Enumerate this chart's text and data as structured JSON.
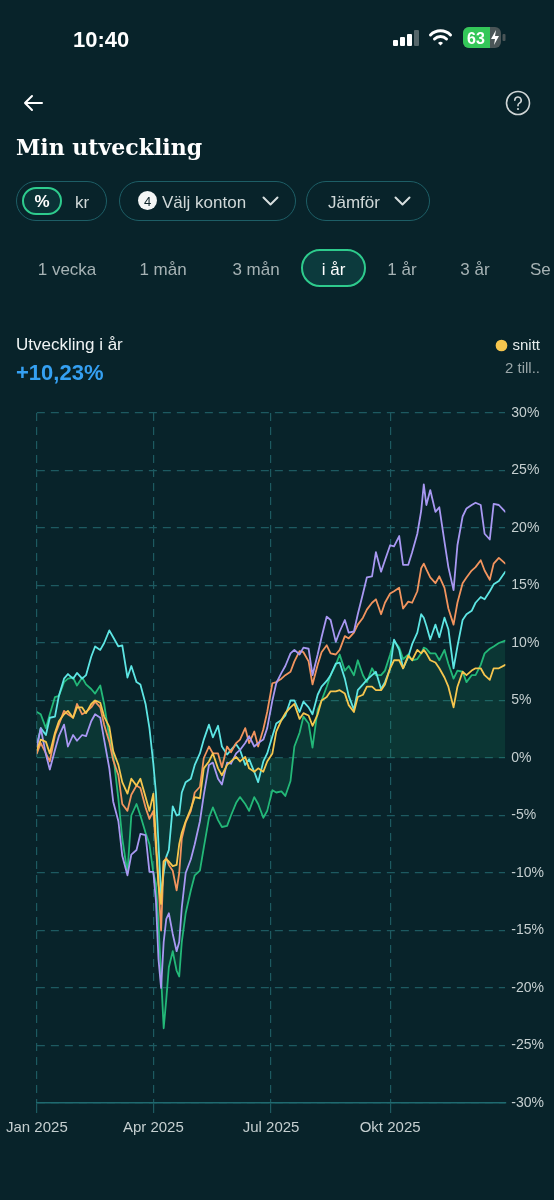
{
  "chart_data": {
    "type": "line",
    "title": "Min utveckling",
    "subtitle": "Utveckling i år",
    "annotations": [
      "10:40",
      "63",
      "%",
      "kr",
      "4",
      "Välj konton",
      "Jämför",
      "1 vecka",
      "1 mån",
      "3 mån",
      "i år",
      "1 år",
      "3 år",
      "Se",
      "+10,23%",
      "2 till.."
    ],
    "x": [
      "2025-01-01",
      "2025-01-04",
      "2025-01-08",
      "2025-01-11",
      "2025-01-15",
      "2025-01-18",
      "2025-01-22",
      "2025-01-25",
      "2025-01-29",
      "2025-02-01",
      "2025-02-05",
      "2025-02-08",
      "2025-02-12",
      "2025-02-15",
      "2025-02-19",
      "2025-02-22",
      "2025-02-26",
      "2025-03-01",
      "2025-03-05",
      "2025-03-08",
      "2025-03-12",
      "2025-03-15",
      "2025-03-19",
      "2025-03-22",
      "2025-03-26",
      "2025-03-29",
      "2025-04-01",
      "2025-04-03",
      "2025-04-05",
      "2025-04-07",
      "2025-04-09",
      "2025-04-11",
      "2025-04-13",
      "2025-04-16",
      "2025-04-19",
      "2025-04-21",
      "2025-04-23",
      "2025-04-26",
      "2025-04-30",
      "2025-05-03",
      "2025-05-07",
      "2025-05-10",
      "2025-05-14",
      "2025-05-17",
      "2025-05-21",
      "2025-05-24",
      "2025-05-28",
      "2025-05-31",
      "2025-06-04",
      "2025-06-07",
      "2025-06-11",
      "2025-06-14",
      "2025-06-18",
      "2025-06-21",
      "2025-06-25",
      "2025-06-28",
      "2025-07-02",
      "2025-07-05",
      "2025-07-09",
      "2025-07-12",
      "2025-07-16",
      "2025-07-19",
      "2025-07-23",
      "2025-07-26",
      "2025-07-30",
      "2025-08-02",
      "2025-08-06",
      "2025-08-09",
      "2025-08-13",
      "2025-08-16",
      "2025-08-20",
      "2025-08-23",
      "2025-08-27",
      "2025-08-30",
      "2025-09-03",
      "2025-09-06",
      "2025-09-10",
      "2025-09-13",
      "2025-09-17",
      "2025-09-20",
      "2025-09-24",
      "2025-09-27",
      "2025-10-01",
      "2025-10-04",
      "2025-10-08",
      "2025-10-11",
      "2025-10-15",
      "2025-10-18",
      "2025-10-22",
      "2025-10-25",
      "2025-10-27",
      "2025-10-29",
      "2025-11-01",
      "2025-11-05",
      "2025-11-08",
      "2025-11-12",
      "2025-11-15",
      "2025-11-19",
      "2025-11-22",
      "2025-11-26",
      "2025-11-29",
      "2025-12-03",
      "2025-12-06",
      "2025-12-10",
      "2025-12-13",
      "2025-12-17",
      "2025-12-20",
      "2025-12-24",
      "2025-12-29"
    ],
    "xlim": [
      "2025-01-01",
      "2025-12-29"
    ],
    "xticks": [
      {
        "value": "2025-01-01",
        "label": "Jan 2025"
      },
      {
        "value": "2025-04-01",
        "label": "Apr 2025"
      },
      {
        "value": "2025-07-01",
        "label": "Jul 2025"
      },
      {
        "value": "2025-10-01",
        "label": "Okt 2025"
      }
    ],
    "ylim": [
      -30,
      30
    ],
    "yticks": [
      {
        "value": -30,
        "label": "-30%"
      },
      {
        "value": -25,
        "label": "-25%"
      },
      {
        "value": -20,
        "label": "-20%"
      },
      {
        "value": -15,
        "label": "-15%"
      },
      {
        "value": -10,
        "label": "-10%"
      },
      {
        "value": -5,
        "label": "-5%"
      },
      {
        "value": 0,
        "label": "0%"
      },
      {
        "value": 5,
        "label": "5%"
      },
      {
        "value": 10,
        "label": "10%"
      },
      {
        "value": 15,
        "label": "15%"
      },
      {
        "value": 20,
        "label": "20%"
      },
      {
        "value": 25,
        "label": "25%"
      },
      {
        "value": 30,
        "label": "30%"
      }
    ],
    "grid": true,
    "legend": "top right",
    "series": [
      {
        "name": "snitt",
        "color": "#f6c64e",
        "values": [
          0.7,
          1.6,
          1.4,
          0.4,
          2.2,
          3.2,
          3.8,
          4.1,
          3.5,
          4.4,
          4.4,
          3.9,
          4.7,
          5.0,
          4.8,
          3.6,
          2.7,
          0.6,
          -0.6,
          -2.1,
          -3.1,
          -1.8,
          -2.4,
          -1.8,
          -3.4,
          -4.6,
          -3.1,
          -7.1,
          -11.0,
          -12.7,
          -9.0,
          -8.8,
          -9.0,
          -9.4,
          -9.3,
          -7.5,
          -6.5,
          -5.5,
          -4.4,
          -3.4,
          -3.5,
          -0.9,
          -0.3,
          0.4,
          -0.9,
          -1.5,
          -0.6,
          -0.3,
          0.1,
          -0.3,
          0.1,
          -0.9,
          -1.2,
          -0.9,
          -1.2,
          -0.3,
          0.4,
          2.3,
          3.3,
          3.9,
          4.4,
          4.7,
          3.4,
          3.9,
          3.7,
          2.8,
          3.8,
          5.0,
          5.3,
          5.8,
          5.8,
          5.9,
          5.6,
          4.6,
          4.0,
          5.3,
          5.5,
          6.2,
          6.2,
          5.9,
          5.9,
          6.4,
          7.8,
          8.5,
          8.5,
          7.8,
          8.9,
          8.5,
          9.4,
          9.1,
          9.4,
          9.1,
          8.5,
          8.3,
          7.8,
          7.0,
          6.2,
          4.4,
          6.2,
          7.5,
          7.2,
          7.6,
          7.8,
          7.8,
          7.2,
          6.8,
          7.8,
          7.8,
          8.1
        ]
      },
      {
        "color": "#a898f2",
        "values": [
          1.0,
          2.6,
          0.3,
          -1.0,
          0.7,
          1.9,
          2.9,
          1.0,
          2.0,
          1.5,
          2.0,
          1.9,
          3.2,
          3.8,
          3.5,
          1.6,
          -0.9,
          -3.8,
          -5.5,
          -8.5,
          -10.2,
          -8.4,
          -8.0,
          -6.6,
          -6.7,
          -9.9,
          -9.9,
          -12.4,
          -17.5,
          -20.0,
          -16.0,
          -14.0,
          -13.5,
          -15.3,
          -16.8,
          -16.0,
          -13.0,
          -10.0,
          -8.8,
          -7.5,
          -5.5,
          -3.2,
          -0.6,
          -0.4,
          -1.8,
          -2.3,
          -0.4,
          -0.5,
          0.4,
          0.7,
          1.3,
          1.9,
          1.0,
          1.3,
          1.6,
          2.6,
          5.0,
          6.5,
          7.4,
          8.0,
          9.1,
          9.4,
          9.0,
          9.6,
          9.5,
          7.2,
          9.0,
          10.5,
          12.3,
          12.0,
          10.1,
          11.0,
          12.0,
          10.9,
          11.0,
          12.5,
          14.3,
          15.7,
          15.8,
          17.9,
          16.2,
          17.2,
          18.5,
          18.4,
          19.3,
          16.8,
          16.8,
          17.9,
          19.5,
          21.5,
          23.8,
          22.0,
          23.3,
          21.4,
          21.8,
          18.8,
          16.6,
          14.6,
          18.5,
          21.0,
          21.7,
          22.0,
          22.2,
          22.0,
          19.5,
          19.0,
          22.1,
          22.0,
          21.4
        ]
      },
      {
        "color": "#f2945e",
        "values": [
          0.4,
          1.3,
          0.4,
          -0.3,
          2.0,
          2.9,
          4.1,
          3.8,
          3.5,
          4.7,
          3.8,
          4.0,
          4.4,
          4.9,
          4.4,
          2.9,
          1.4,
          -0.2,
          -1.5,
          -4.0,
          -4.6,
          -3.2,
          -2.4,
          -2.6,
          -4.3,
          -5.3,
          -4.6,
          -7.8,
          -10.9,
          -15.0,
          -9.0,
          -8.7,
          -9.3,
          -9.8,
          -11.5,
          -10.0,
          -7.0,
          -5.6,
          -4.6,
          -3.0,
          -2.5,
          0.0,
          1.0,
          0.4,
          0.4,
          -0.8,
          1.0,
          0.5,
          1.3,
          1.6,
          2.6,
          1.3,
          2.3,
          1.0,
          2.5,
          4.0,
          6.5,
          6.6,
          6.9,
          7.2,
          7.5,
          8.4,
          9.3,
          9.2,
          8.4,
          6.4,
          8.1,
          9.2,
          9.8,
          9.1,
          9.0,
          9.4,
          10.6,
          10.4,
          10.9,
          11.6,
          12.2,
          12.9,
          13.5,
          13.8,
          12.5,
          13.5,
          14.3,
          14.5,
          14.8,
          13.0,
          13.6,
          13.5,
          14.5,
          16.5,
          16.9,
          16.4,
          15.7,
          15.2,
          15.8,
          14.8,
          13.0,
          11.6,
          13.5,
          15.2,
          15.7,
          16.3,
          16.6,
          17.2,
          16.3,
          15.5,
          16.9,
          17.4,
          16.9
        ]
      },
      {
        "color": "#5de6e4",
        "values": [
          1.0,
          2.6,
          2.0,
          3.5,
          3.6,
          5.4,
          6.9,
          7.3,
          6.9,
          7.4,
          6.9,
          7.2,
          8.8,
          9.7,
          9.4,
          10.0,
          11.1,
          10.5,
          9.7,
          9.8,
          7.0,
          8.0,
          6.6,
          6.4,
          4.7,
          2.6,
          -0.5,
          -3.0,
          -7.5,
          -12.0,
          -10.0,
          -8.6,
          -8.0,
          -4.2,
          -5.0,
          -4.9,
          -3.0,
          -2.1,
          -1.8,
          -0.6,
          0.4,
          1.6,
          2.9,
          1.8,
          2.8,
          1.0,
          0.3,
          0.7,
          1.2,
          0.7,
          -0.6,
          -0.1,
          -1.2,
          -2.1,
          -0.3,
          0.4,
          1.9,
          3.0,
          3.3,
          3.7,
          5.0,
          5.0,
          4.0,
          4.9,
          4.4,
          3.8,
          5.5,
          6.2,
          6.7,
          7.2,
          8.2,
          8.3,
          6.9,
          5.4,
          4.2,
          5.9,
          6.4,
          6.8,
          7.2,
          7.5,
          6.0,
          6.6,
          7.8,
          10.3,
          9.4,
          7.8,
          8.8,
          9.9,
          10.9,
          12.5,
          12.2,
          11.5,
          10.3,
          11.6,
          10.5,
          12.2,
          11.2,
          7.8,
          9.7,
          12.0,
          12.5,
          12.8,
          13.5,
          14.0,
          13.8,
          14.5,
          15.1,
          15.4,
          16.2
        ]
      },
      {
        "type": "area",
        "color": "#23b878",
        "values": [
          4.0,
          3.8,
          2.6,
          3.8,
          5.3,
          5.4,
          6.6,
          6.9,
          7.0,
          6.3,
          7.0,
          6.4,
          6.0,
          5.6,
          6.3,
          4.7,
          1.8,
          0.3,
          -3.6,
          -7.0,
          -10.0,
          -5.0,
          -4.0,
          -5.0,
          -6.5,
          -7.5,
          -10.0,
          -10.9,
          -14.5,
          -19.0,
          -23.5,
          -21.0,
          -18.2,
          -16.8,
          -18.5,
          -19.0,
          -16.0,
          -13.5,
          -11.5,
          -10.2,
          -9.8,
          -7.8,
          -5.2,
          -4.3,
          -5.4,
          -6.0,
          -5.9,
          -5.0,
          -3.9,
          -3.4,
          -4.0,
          -4.6,
          -3.4,
          -4.0,
          -5.2,
          -4.6,
          -2.8,
          -3.0,
          -2.9,
          -3.3,
          -2.0,
          1.0,
          2.2,
          3.6,
          3.0,
          0.9,
          4.2,
          5.0,
          6.2,
          7.2,
          8.1,
          9.0,
          7.6,
          8.0,
          7.2,
          8.5,
          7.2,
          6.6,
          7.8,
          7.2,
          7.2,
          7.6,
          9.0,
          10.2,
          9.6,
          8.6,
          9.0,
          8.5,
          8.6,
          9.1,
          9.6,
          9.5,
          9.1,
          9.1,
          8.5,
          9.4,
          8.2,
          6.9,
          7.6,
          7.5,
          6.6,
          7.2,
          7.2,
          8.1,
          9.1,
          9.5,
          9.7,
          10.0,
          10.2
        ]
      }
    ]
  }
}
